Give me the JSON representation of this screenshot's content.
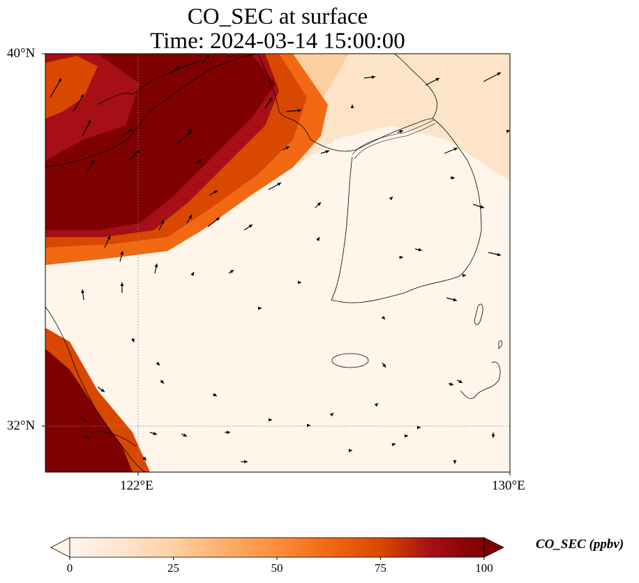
{
  "title_line1": "CO_SEC at surface",
  "title_line2": "Time: 2024-03-14 15:00:00",
  "map": {
    "lat_labels": [
      "40°N",
      "32°N"
    ],
    "lon_labels": [
      "122°E",
      "130°E"
    ],
    "extent": {
      "lon_min": 120,
      "lon_max": 130,
      "lat_min": 31,
      "lat_max": 40
    },
    "gridlines": {
      "lon": [
        122
      ],
      "lat": [
        32
      ]
    },
    "field_name": "CO_SEC",
    "wind_vectors": "shown"
  },
  "colorbar": {
    "label": "CO_SEC (ppbv)",
    "ticks": [
      "0",
      "25",
      "50",
      "75",
      "100"
    ],
    "min": 0,
    "max": 100,
    "extend": "both",
    "colormap": [
      "#fff5eb",
      "#fee6ce",
      "#fdd0a2",
      "#fdae6b",
      "#fd8d3c",
      "#f16913",
      "#d94801",
      "#a50f15",
      "#7f0000"
    ]
  }
}
